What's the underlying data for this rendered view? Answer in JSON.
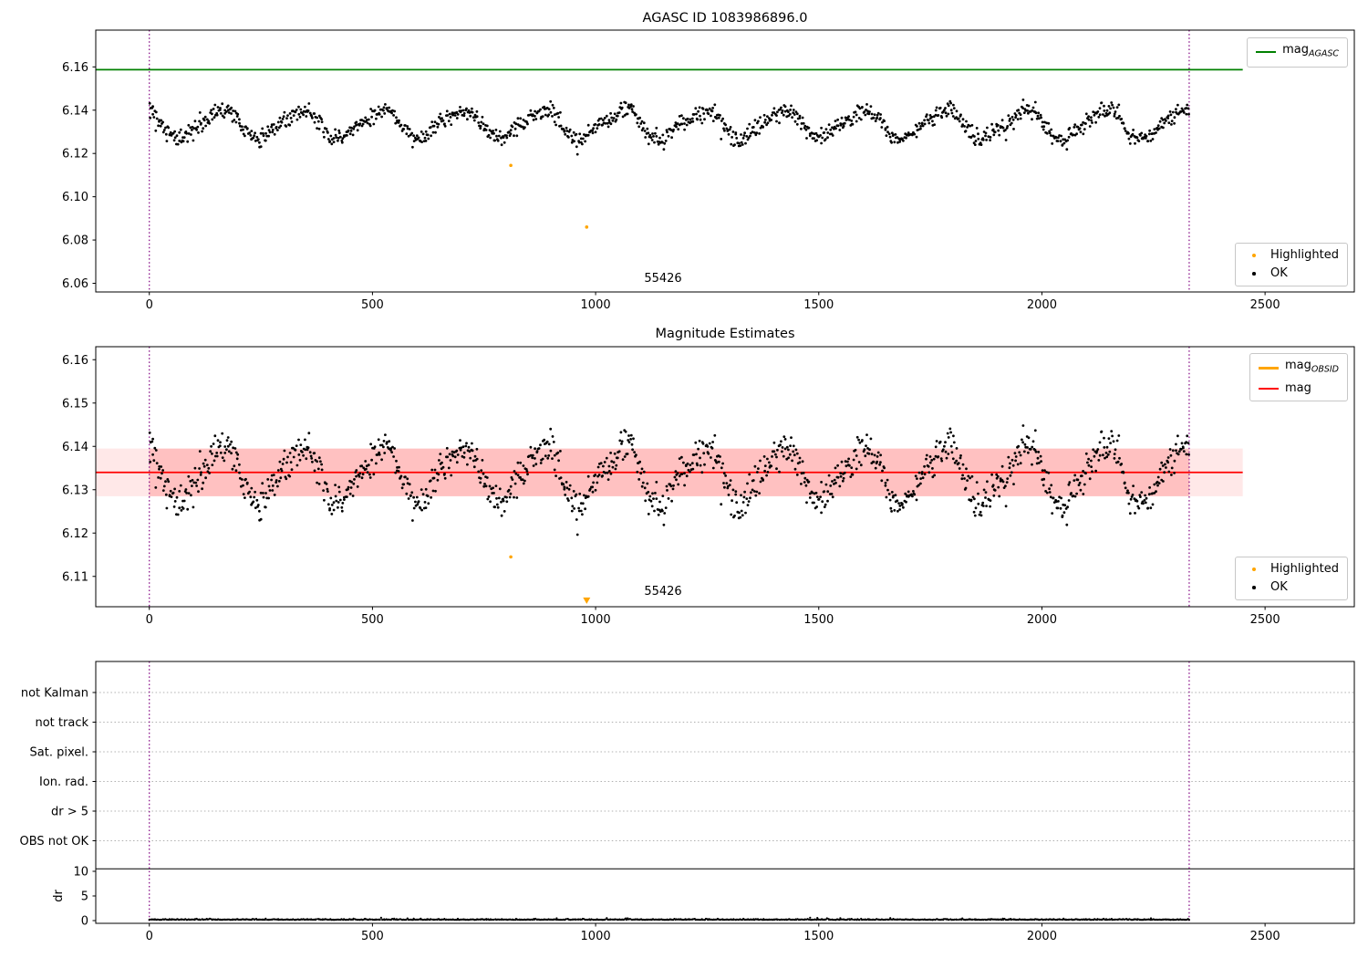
{
  "chart_data": [
    {
      "type": "scatter",
      "title": "AGASC ID 1083986896.0",
      "xlim": [
        -120,
        2700
      ],
      "ylim": [
        6.056,
        6.177
      ],
      "xticks": [
        0,
        500,
        1000,
        1500,
        2000,
        2500
      ],
      "yticks": [
        6.16,
        6.14,
        6.12,
        6.1,
        6.08,
        6.06
      ],
      "ytick_labels": [
        "6.16",
        "6.14",
        "6.12",
        "6.10",
        "6.08",
        "6.06"
      ],
      "agasc_line": {
        "label_main": "mag",
        "label_sub": "AGASC",
        "color": "#008000",
        "y": 6.1587,
        "x_start": -120,
        "x_end": 2450
      },
      "ok_series": {
        "label": "OK",
        "color": "#000000",
        "n": 1300,
        "x_start": 0,
        "x_end": 2330,
        "mean": 6.1335,
        "amplitude": 0.0062,
        "period": 180,
        "phase": 2.3,
        "harmonic2_amp": 0.0012,
        "harmonic2_phase": 1.3,
        "noise_sigma": 0.002,
        "outlier_rate": 0.006,
        "outlier_depth": 0.007
      },
      "highlighted": {
        "label": "Highlighted",
        "color": "#FFA500",
        "points": [
          [
            810,
            6.1145
          ],
          [
            980,
            6.086
          ]
        ]
      },
      "obsid_vlines": {
        "color": "#800080",
        "x": [
          0,
          2330
        ]
      },
      "annotation": {
        "text": "55426",
        "x": 1150
      }
    },
    {
      "type": "scatter",
      "title": "Magnitude Estimates",
      "xlim": [
        -120,
        2700
      ],
      "ylim": [
        6.103,
        6.163
      ],
      "xticks": [
        0,
        500,
        1000,
        1500,
        2000,
        2500
      ],
      "yticks": [
        6.16,
        6.15,
        6.14,
        6.13,
        6.12,
        6.11
      ],
      "ytick_labels": [
        "6.16",
        "6.15",
        "6.14",
        "6.13",
        "6.12",
        "6.11"
      ],
      "mag_line": {
        "label": "mag",
        "color": "#FF0000",
        "y": 6.134,
        "x_start": -120,
        "x_end": 2450
      },
      "mag_obsid_legend": {
        "label_main": "mag",
        "label_sub": "OBSID",
        "color": "#FFA500"
      },
      "band": {
        "y_low": 6.1285,
        "y_high": 6.1395,
        "outer_x": [
          -120,
          2450
        ],
        "inner_x": [
          0,
          2330
        ],
        "outer_color": "rgba(255,0,0,0.09)",
        "inner_color": "rgba(255,0,0,0.17)"
      },
      "highlighted": {
        "label": "Highlighted",
        "color": "#FFA500",
        "points": [
          [
            810,
            6.1145
          ]
        ],
        "clipped_points": [
          [
            980,
            6.1045
          ]
        ]
      },
      "ok_label": "OK",
      "obsid_vlines": {
        "color": "#800080",
        "x": [
          0,
          2330
        ]
      },
      "annotation": {
        "text": "55426",
        "x": 1150
      }
    },
    {
      "type": "flags_dr",
      "flag_labels": [
        "not Kalman",
        "not track",
        "Sat. pixel.",
        "Ion. rad.",
        "dr > 5",
        "OBS not OK"
      ],
      "dr": {
        "ylabel": "dr",
        "yticks": [
          10,
          5,
          0
        ],
        "threshold": 10.5,
        "series": {
          "color": "#000000",
          "base": 0.15,
          "sigma": 0.08,
          "n": 1150,
          "x_start": 0,
          "x_end": 2330,
          "bump_rate": 0.03,
          "bump_max": 0.35
        }
      },
      "xticks": [
        0,
        500,
        1000,
        1500,
        2000,
        2500
      ],
      "obsid_vlines": {
        "color": "#800080",
        "x": [
          0,
          2330
        ]
      }
    }
  ]
}
